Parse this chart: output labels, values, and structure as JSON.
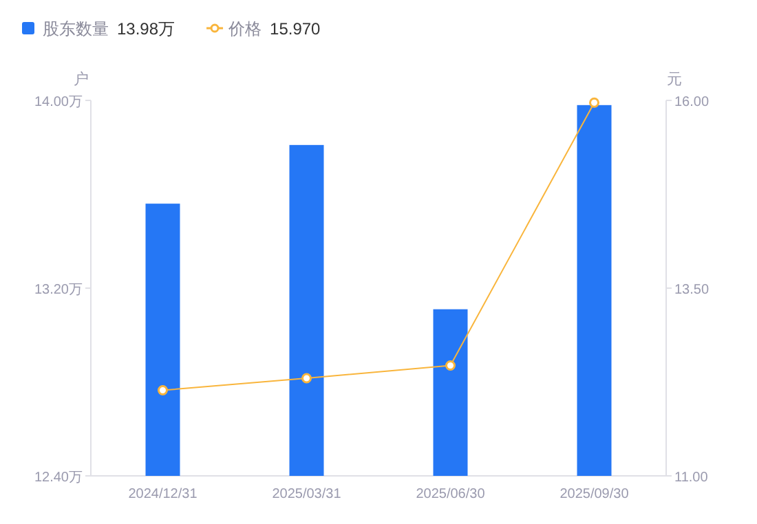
{
  "chart_data": {
    "type": "bar",
    "categories": [
      "2024/12/31",
      "2025/03/31",
      "2025/06/30",
      "2025/09/30"
    ],
    "series": [
      {
        "name": "股东数量",
        "color": "#2577f5",
        "values": [
          13.56,
          13.81,
          13.11,
          13.98
        ]
      },
      {
        "name": "价格",
        "type": "line",
        "axis": "y2",
        "color": "#f9b53c",
        "values": [
          12.14,
          12.3,
          12.47,
          15.97
        ]
      }
    ],
    "marker": "circle",
    "line_style": "solid",
    "ylabel": "户",
    "y2label": "元",
    "ylim": [
      12.4,
      14
    ],
    "yticks": [
      {
        "value": 12.4,
        "label": "12.40万"
      },
      {
        "value": 13.2,
        "label": "13.20万"
      },
      {
        "value": 14,
        "label": "14.00万"
      }
    ],
    "y2lim": [
      11,
      16
    ],
    "y2ticks": [
      {
        "value": 11,
        "label": "11.00"
      },
      {
        "value": 13.5,
        "label": "13.50"
      },
      {
        "value": 16,
        "label": "16.00"
      }
    ],
    "legend": "top left",
    "grid": false,
    "annotations": [
      "13.98万",
      "15.970"
    ]
  }
}
